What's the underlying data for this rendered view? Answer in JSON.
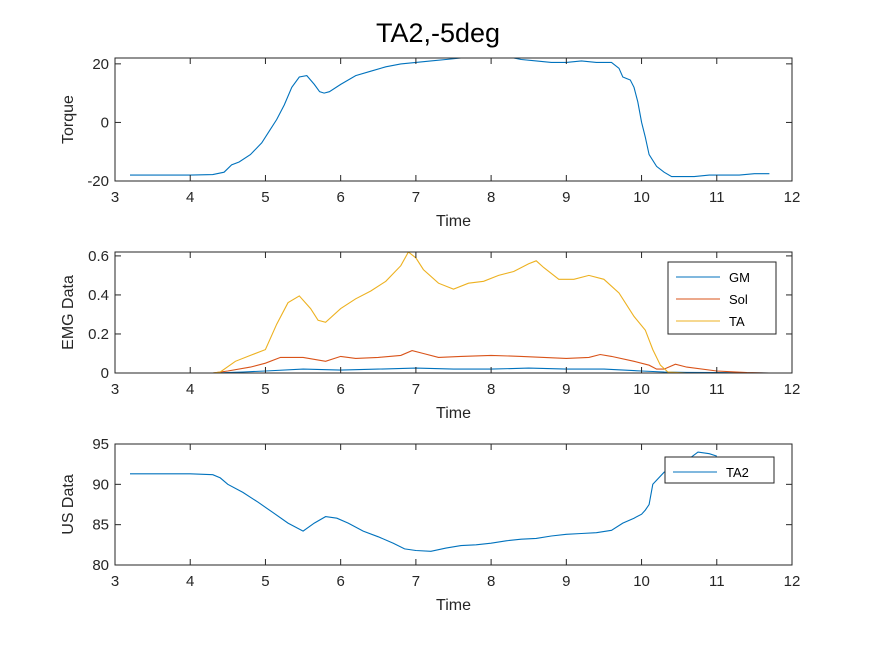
{
  "title": "TA2,-5deg",
  "chart_data": [
    {
      "type": "line",
      "xlabel": "Time",
      "ylabel": "Torque",
      "xlim": [
        3,
        12
      ],
      "ylim": [
        -20,
        22
      ],
      "xticks": [
        3,
        4,
        5,
        6,
        7,
        8,
        9,
        10,
        11,
        12
      ],
      "yticks": [
        -20,
        0,
        20
      ],
      "grid": false,
      "legend": null,
      "series": [
        {
          "color": "#0072BD",
          "x": [
            3.2,
            3.6,
            4.0,
            4.3,
            4.45,
            4.55,
            4.65,
            4.8,
            4.95,
            5.05,
            5.15,
            5.25,
            5.35,
            5.45,
            5.55,
            5.65,
            5.72,
            5.78,
            5.85,
            6.0,
            6.2,
            6.4,
            6.6,
            6.8,
            7.0,
            7.2,
            7.4,
            7.6,
            7.8,
            8.0,
            8.2,
            8.4,
            8.6,
            8.8,
            9.0,
            9.2,
            9.4,
            9.6,
            9.7,
            9.75,
            9.8,
            9.85,
            9.9,
            9.95,
            10.0,
            10.05,
            10.1,
            10.2,
            10.3,
            10.4,
            10.5,
            10.7,
            10.9,
            11.1,
            11.3,
            11.5,
            11.7
          ],
          "y": [
            -18,
            -18,
            -18,
            -17.8,
            -17,
            -14.5,
            -13.5,
            -11,
            -7,
            -3,
            1,
            6,
            12,
            15.5,
            16,
            13,
            10.5,
            10,
            10.5,
            13,
            16,
            17.5,
            19,
            20,
            20.5,
            21,
            21.5,
            22,
            22.5,
            22.5,
            22.5,
            21.5,
            21,
            20.5,
            20.5,
            21,
            20.5,
            20.5,
            18.5,
            15.5,
            15,
            14.5,
            12,
            7,
            0,
            -5,
            -11,
            -15,
            -17,
            -18.5,
            -18.5,
            -18.5,
            -18,
            -18,
            -18,
            -17.5,
            -17.5
          ]
        }
      ]
    },
    {
      "type": "line",
      "xlabel": "Time",
      "ylabel": "EMG Data",
      "xlim": [
        3,
        12
      ],
      "ylim": [
        0,
        0.62
      ],
      "xticks": [
        3,
        4,
        5,
        6,
        7,
        8,
        9,
        10,
        11,
        12
      ],
      "yticks": [
        0,
        0.2,
        0.4,
        0.6
      ],
      "grid": false,
      "legend": "top-right",
      "series": [
        {
          "name": "GM",
          "color": "#0072BD",
          "x": [
            3.2,
            4.3,
            4.7,
            5.0,
            5.5,
            6.0,
            6.5,
            7.0,
            7.5,
            8.0,
            8.5,
            9.0,
            9.5,
            10.0,
            10.3,
            10.6,
            11.0,
            11.7
          ],
          "y": [
            0,
            0,
            0.005,
            0.01,
            0.02,
            0.015,
            0.02,
            0.025,
            0.02,
            0.02,
            0.025,
            0.02,
            0.02,
            0.01,
            0.005,
            0.003,
            0.002,
            0
          ]
        },
        {
          "name": "Sol",
          "color": "#D95319",
          "x": [
            3.2,
            4.3,
            4.5,
            4.8,
            5.0,
            5.2,
            5.5,
            5.8,
            6.0,
            6.2,
            6.5,
            6.8,
            6.95,
            7.1,
            7.3,
            7.6,
            8.0,
            8.4,
            8.7,
            9.0,
            9.3,
            9.45,
            9.6,
            9.9,
            10.1,
            10.2,
            10.3,
            10.45,
            10.6,
            11.0,
            11.4,
            11.7
          ],
          "y": [
            0,
            0,
            0.01,
            0.03,
            0.05,
            0.08,
            0.08,
            0.06,
            0.085,
            0.075,
            0.08,
            0.09,
            0.115,
            0.1,
            0.08,
            0.085,
            0.09,
            0.085,
            0.08,
            0.075,
            0.08,
            0.095,
            0.085,
            0.06,
            0.04,
            0.02,
            0.02,
            0.045,
            0.03,
            0.01,
            0.002,
            0
          ]
        },
        {
          "name": "TA",
          "color": "#EDB120",
          "x": [
            3.2,
            4.3,
            4.4,
            4.6,
            4.8,
            5.0,
            5.15,
            5.3,
            5.45,
            5.6,
            5.7,
            5.8,
            6.0,
            6.2,
            6.4,
            6.6,
            6.8,
            6.9,
            7.0,
            7.1,
            7.3,
            7.5,
            7.7,
            7.9,
            8.1,
            8.3,
            8.5,
            8.6,
            8.7,
            8.9,
            9.1,
            9.3,
            9.5,
            9.7,
            9.9,
            10.05,
            10.15,
            10.25,
            10.35,
            10.6,
            11.0,
            11.4,
            11.7
          ],
          "y": [
            0,
            0,
            0.005,
            0.06,
            0.09,
            0.12,
            0.25,
            0.36,
            0.395,
            0.33,
            0.27,
            0.26,
            0.33,
            0.38,
            0.42,
            0.47,
            0.55,
            0.62,
            0.59,
            0.53,
            0.46,
            0.43,
            0.46,
            0.47,
            0.5,
            0.52,
            0.56,
            0.575,
            0.54,
            0.48,
            0.48,
            0.5,
            0.48,
            0.41,
            0.29,
            0.22,
            0.12,
            0.04,
            0.005,
            0,
            0,
            0,
            0
          ]
        }
      ]
    },
    {
      "type": "line",
      "xlabel": "Time",
      "ylabel": "US Data",
      "xlim": [
        3,
        12
      ],
      "ylim": [
        80,
        95
      ],
      "xticks": [
        3,
        4,
        5,
        6,
        7,
        8,
        9,
        10,
        11,
        12
      ],
      "yticks": [
        80,
        85,
        90,
        95
      ],
      "grid": false,
      "legend": "top-right",
      "series": [
        {
          "name": "TA2",
          "color": "#0072BD",
          "x": [
            3.2,
            3.6,
            4.0,
            4.3,
            4.4,
            4.5,
            4.7,
            4.9,
            5.1,
            5.3,
            5.5,
            5.65,
            5.8,
            5.95,
            6.1,
            6.3,
            6.5,
            6.7,
            6.85,
            7.0,
            7.2,
            7.4,
            7.6,
            7.8,
            8.0,
            8.2,
            8.4,
            8.6,
            8.8,
            9.0,
            9.2,
            9.4,
            9.6,
            9.75,
            9.9,
            10.0,
            10.05,
            10.1,
            10.15,
            10.3,
            10.5,
            10.65,
            10.75,
            10.9,
            11.0
          ],
          "y": [
            91.3,
            91.3,
            91.3,
            91.2,
            90.8,
            90,
            89,
            87.8,
            86.5,
            85.2,
            84.2,
            85.2,
            86,
            85.8,
            85.2,
            84.2,
            83.5,
            82.7,
            82,
            81.8,
            81.7,
            82.1,
            82.4,
            82.5,
            82.7,
            83,
            83.2,
            83.3,
            83.6,
            83.8,
            83.9,
            84,
            84.3,
            85.2,
            85.8,
            86.3,
            86.8,
            87.5,
            90,
            91.5,
            92.5,
            93.3,
            94,
            93.8,
            93.5
          ]
        }
      ]
    }
  ]
}
